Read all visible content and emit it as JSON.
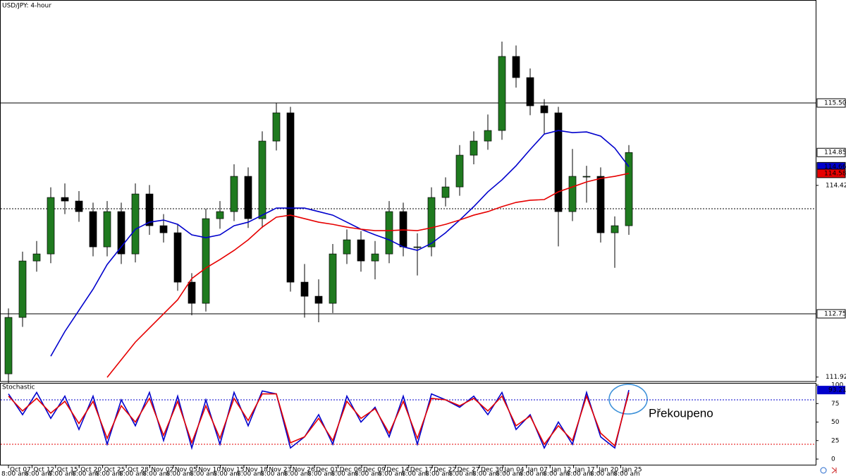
{
  "chart_data": {
    "type": "candlestick",
    "title": "USD/JPY: 4-hour",
    "ylim": [
      111.867,
      116.843
    ],
    "yticks": [
      114.425,
      111.925
    ],
    "hlines": [
      {
        "value": 115.5,
        "label": "115.500"
      },
      {
        "value": 112.75,
        "label": "112.750"
      }
    ],
    "dotted_line": 114.12,
    "up_color": "#1f7a1f",
    "down_color": "#000000",
    "candles": [
      {
        "open": 111.967,
        "high": 112.82,
        "low": 111.85,
        "close": 112.703
      },
      {
        "open": 112.703,
        "high": 113.56,
        "low": 112.58,
        "close": 113.439
      },
      {
        "open": 113.439,
        "high": 113.7,
        "low": 113.3,
        "close": 113.531
      },
      {
        "open": 113.531,
        "high": 114.4,
        "low": 113.41,
        "close": 114.267
      },
      {
        "open": 114.267,
        "high": 114.45,
        "low": 114.05,
        "close": 114.221
      },
      {
        "open": 114.221,
        "high": 114.35,
        "low": 113.95,
        "close": 114.083
      },
      {
        "open": 114.083,
        "high": 114.2,
        "low": 113.5,
        "close": 113.623
      },
      {
        "open": 113.623,
        "high": 114.22,
        "low": 113.5,
        "close": 114.083
      },
      {
        "open": 114.083,
        "high": 114.2,
        "low": 113.4,
        "close": 113.531
      },
      {
        "open": 113.531,
        "high": 114.45,
        "low": 113.42,
        "close": 114.313
      },
      {
        "open": 114.313,
        "high": 114.43,
        "low": 113.78,
        "close": 113.899
      },
      {
        "open": 113.899,
        "high": 114.05,
        "low": 113.68,
        "close": 113.807
      },
      {
        "open": 113.807,
        "high": 113.92,
        "low": 113.05,
        "close": 113.163
      },
      {
        "open": 113.163,
        "high": 113.28,
        "low": 112.73,
        "close": 112.887
      },
      {
        "open": 112.887,
        "high": 114.12,
        "low": 112.78,
        "close": 113.991
      },
      {
        "open": 113.991,
        "high": 114.22,
        "low": 113.86,
        "close": 114.083
      },
      {
        "open": 114.083,
        "high": 114.7,
        "low": 113.96,
        "close": 114.543
      },
      {
        "open": 114.543,
        "high": 114.66,
        "low": 113.87,
        "close": 113.991
      },
      {
        "open": 113.991,
        "high": 115.13,
        "low": 113.87,
        "close": 115.003
      },
      {
        "open": 115.003,
        "high": 115.5,
        "low": 114.88,
        "close": 115.371
      },
      {
        "open": 115.371,
        "high": 115.45,
        "low": 113.04,
        "close": 113.163
      },
      {
        "open": 113.163,
        "high": 113.4,
        "low": 112.7,
        "close": 112.979
      },
      {
        "open": 112.979,
        "high": 113.2,
        "low": 112.64,
        "close": 112.887
      },
      {
        "open": 112.887,
        "high": 113.66,
        "low": 112.76,
        "close": 113.531
      },
      {
        "open": 113.531,
        "high": 113.85,
        "low": 113.4,
        "close": 113.715
      },
      {
        "open": 113.715,
        "high": 113.83,
        "low": 113.3,
        "close": 113.439
      },
      {
        "open": 113.439,
        "high": 113.7,
        "low": 113.2,
        "close": 113.531
      },
      {
        "open": 113.531,
        "high": 114.22,
        "low": 113.41,
        "close": 114.083
      },
      {
        "open": 114.083,
        "high": 114.2,
        "low": 113.5,
        "close": 113.623
      },
      {
        "open": 113.623,
        "high": 113.8,
        "low": 113.25,
        "close": 113.623
      },
      {
        "open": 113.623,
        "high": 114.4,
        "low": 113.5,
        "close": 114.267
      },
      {
        "open": 114.267,
        "high": 114.53,
        "low": 114.15,
        "close": 114.405
      },
      {
        "open": 114.405,
        "high": 114.95,
        "low": 114.29,
        "close": 114.819
      },
      {
        "open": 114.819,
        "high": 115.13,
        "low": 114.7,
        "close": 115.003
      },
      {
        "open": 115.003,
        "high": 115.35,
        "low": 114.89,
        "close": 115.141
      },
      {
        "open": 115.141,
        "high": 116.3,
        "low": 115.02,
        "close": 116.107
      },
      {
        "open": 116.107,
        "high": 116.25,
        "low": 115.7,
        "close": 115.831
      },
      {
        "open": 115.831,
        "high": 115.95,
        "low": 115.34,
        "close": 115.463
      },
      {
        "open": 115.463,
        "high": 115.55,
        "low": 115.1,
        "close": 115.371
      },
      {
        "open": 115.371,
        "high": 115.45,
        "low": 113.63,
        "close": 114.083
      },
      {
        "open": 114.083,
        "high": 114.9,
        "low": 113.96,
        "close": 114.543
      },
      {
        "open": 114.543,
        "high": 114.68,
        "low": 114.2,
        "close": 114.543
      },
      {
        "open": 114.543,
        "high": 114.66,
        "low": 113.68,
        "close": 113.807
      },
      {
        "open": 113.807,
        "high": 114.02,
        "low": 113.35,
        "close": 113.899
      },
      {
        "open": 113.899,
        "high": 114.95,
        "low": 113.78,
        "close": 114.854
      }
    ],
    "moving_averages": [
      {
        "color": "#0000cc",
        "values": [
          null,
          null,
          null,
          112.197,
          112.519,
          112.795,
          113.071,
          113.393,
          113.623,
          113.853,
          113.945,
          113.973,
          113.917,
          113.78,
          113.743,
          113.78,
          113.899,
          113.945,
          114.037,
          114.129,
          114.129,
          114.129,
          114.083,
          114.037,
          113.945,
          113.853,
          113.78,
          113.715,
          113.623,
          113.577,
          113.669,
          113.807,
          113.973,
          114.148,
          114.341,
          114.497,
          114.681,
          114.893,
          115.095,
          115.141,
          115.113,
          115.122,
          115.068,
          114.911,
          114.669
        ]
      },
      {
        "color": "#e60000",
        "values": [
          null,
          null,
          null,
          null,
          null,
          null,
          null,
          111.921,
          112.151,
          112.381,
          112.565,
          112.749,
          112.933,
          113.209,
          113.347,
          113.458,
          113.577,
          113.715,
          113.881,
          114.01,
          114.037,
          113.991,
          113.945,
          113.917,
          113.881,
          113.853,
          113.835,
          113.835,
          113.844,
          113.835,
          113.872,
          113.917,
          113.973,
          114.037,
          114.083,
          114.148,
          114.203,
          114.231,
          114.24,
          114.341,
          114.405,
          114.47,
          114.516,
          114.543,
          114.581
        ]
      }
    ],
    "x_labels": [
      {
        "date": "Oct 07",
        "time": "8:00 am"
      },
      {
        "date": "Oct 12",
        "time": "8:00 am"
      },
      {
        "date": "Oct 15",
        "time": "8:00 am"
      },
      {
        "date": "Oct 20",
        "time": "8:00 am"
      },
      {
        "date": "Oct 25",
        "time": "8:00 am"
      },
      {
        "date": "Oct 28",
        "time": "8:00 am"
      },
      {
        "date": "Nov 02",
        "time": "8:00 am"
      },
      {
        "date": "Nov 05",
        "time": "8:00 am"
      },
      {
        "date": "Nov 10",
        "time": "8:00 am"
      },
      {
        "date": "Nov 15",
        "time": "8:00 am"
      },
      {
        "date": "Nov 18",
        "time": "8:00 am"
      },
      {
        "date": "Nov 23",
        "time": "8:00 am"
      },
      {
        "date": "Nov 26",
        "time": "8:00 am"
      },
      {
        "date": "Dec 01",
        "time": "8:00 am"
      },
      {
        "date": "Dec 06",
        "time": "8:00 am"
      },
      {
        "date": "Dec 09",
        "time": "8:00 am"
      },
      {
        "date": "Dec 14",
        "time": "8:00 am"
      },
      {
        "date": "Dec 17",
        "time": "8:00 am"
      },
      {
        "date": "Dec 22",
        "time": "8:00 am"
      },
      {
        "date": "Dec 27",
        "time": "8:00 am"
      },
      {
        "date": "Dec 30",
        "time": "8:00 am"
      },
      {
        "date": "Jan 04",
        "time": "8:00 am"
      },
      {
        "date": "Jan 07",
        "time": "8:00 am"
      },
      {
        "date": "Jan 12",
        "time": "8:00 am"
      },
      {
        "date": "Jan 17",
        "time": "8:00 am"
      },
      {
        "date": "Jan 20",
        "time": "8:00 am"
      },
      {
        "date": "Jan 25",
        "time": "8:00 am"
      }
    ],
    "stochastic": {
      "title": "Stochastic",
      "ylim": [
        0,
        100
      ],
      "yticks": [
        100,
        75,
        50,
        25,
        0
      ],
      "levels": [
        {
          "value": 80,
          "color": "#0000cc"
        },
        {
          "value": 20,
          "color": "#e60000"
        }
      ],
      "series": [
        {
          "color": "#0000cc",
          "values": [
            88,
            60,
            90,
            55,
            85,
            40,
            85,
            20,
            80,
            45,
            90,
            25,
            85,
            15,
            80,
            20,
            90,
            45,
            92,
            88,
            15,
            30,
            60,
            20,
            85,
            50,
            70,
            30,
            85,
            20,
            88,
            80,
            70,
            85,
            60,
            90,
            40,
            60,
            15,
            50,
            20,
            90,
            30,
            15,
            93.21
          ]
        },
        {
          "color": "#e60000",
          "values": [
            85,
            65,
            82,
            62,
            78,
            48,
            78,
            28,
            72,
            50,
            82,
            32,
            78,
            22,
            72,
            28,
            82,
            52,
            88,
            88,
            22,
            30,
            55,
            25,
            78,
            55,
            68,
            35,
            78,
            28,
            82,
            80,
            72,
            82,
            65,
            85,
            45,
            58,
            20,
            45,
            25,
            85,
            35,
            18,
            90
          ]
        }
      ]
    },
    "annotation": "Překoupeno"
  }
}
